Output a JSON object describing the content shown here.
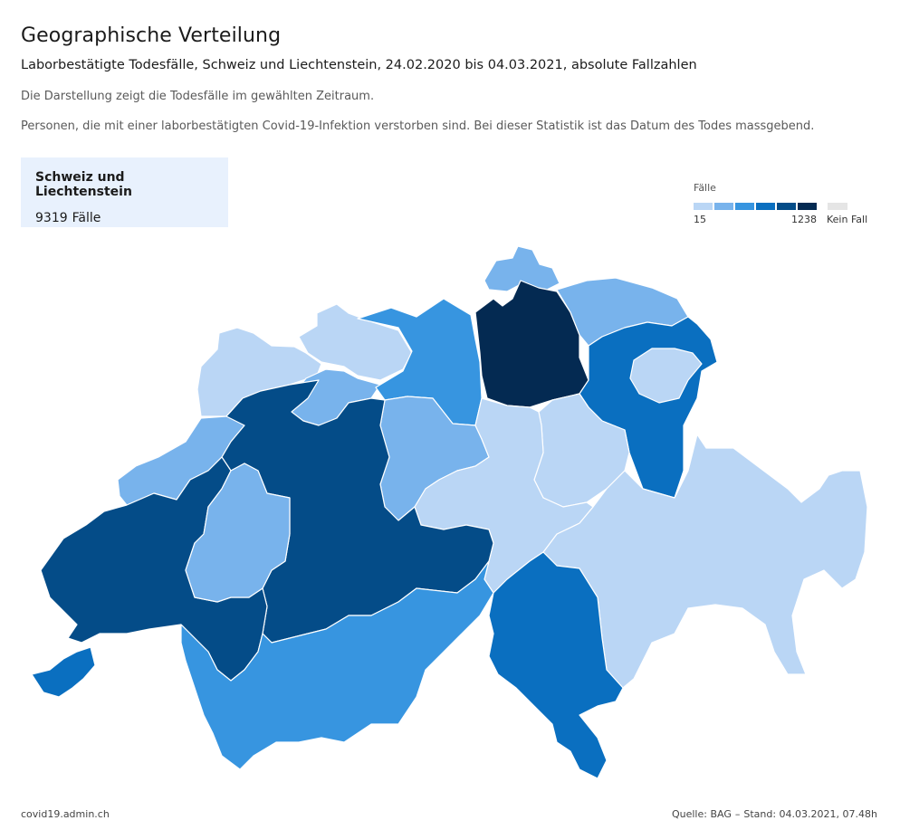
{
  "header": {
    "title": "Geographische Verteilung",
    "subtitle": "Laborbestätigte Todesfälle, Schweiz und Liechtenstein, 24.02.2020 bis 04.03.2021, absolute Fallzahlen",
    "description_1": "Die Darstellung zeigt die Todesfälle im gewählten Zeitraum.",
    "description_2": "Personen, die mit einer laborbestätigten Covid-19-Infektion verstorben sind. Bei dieser Statistik ist das Datum des Todes massgebend."
  },
  "summary": {
    "region": "Schweiz und Liechtenstein",
    "count": "9319",
    "unit": "Fälle"
  },
  "legend": {
    "title": "Fälle",
    "min_label": "15",
    "max_label": "1238",
    "no_case_label": "Kein Fall",
    "colors": [
      "#bad6f5",
      "#78b3ec",
      "#3795e0",
      "#0a6fc0",
      "#044c88",
      "#042a52"
    ],
    "no_case_color": "#e5e5e5"
  },
  "map": {
    "regions": [
      {
        "id": "sh",
        "color_class": 1
      },
      {
        "id": "bs-bl",
        "color_class": 0
      },
      {
        "id": "ju",
        "color_class": 0
      },
      {
        "id": "so",
        "color_class": 1
      },
      {
        "id": "ag",
        "color_class": 2
      },
      {
        "id": "zh",
        "color_class": 5
      },
      {
        "id": "tg",
        "color_class": 1
      },
      {
        "id": "sg",
        "color_class": 3
      },
      {
        "id": "ar-ai",
        "color_class": 0
      },
      {
        "id": "gl",
        "color_class": 0
      },
      {
        "id": "gr",
        "color_class": 0
      },
      {
        "id": "lu",
        "color_class": 1
      },
      {
        "id": "central",
        "color_class": 0
      },
      {
        "id": "ne",
        "color_class": 1
      },
      {
        "id": "be",
        "color_class": 4
      },
      {
        "id": "vd",
        "color_class": 4
      },
      {
        "id": "fr",
        "color_class": 1
      },
      {
        "id": "vs",
        "color_class": 2
      },
      {
        "id": "ti",
        "color_class": 3
      },
      {
        "id": "ge",
        "color_class": 3
      }
    ]
  },
  "footer": {
    "source_site": "covid19.admin.ch",
    "source_label": "Quelle: BAG",
    "separator": "–",
    "stand": "Stand: 04.03.2021, 07.48h"
  }
}
